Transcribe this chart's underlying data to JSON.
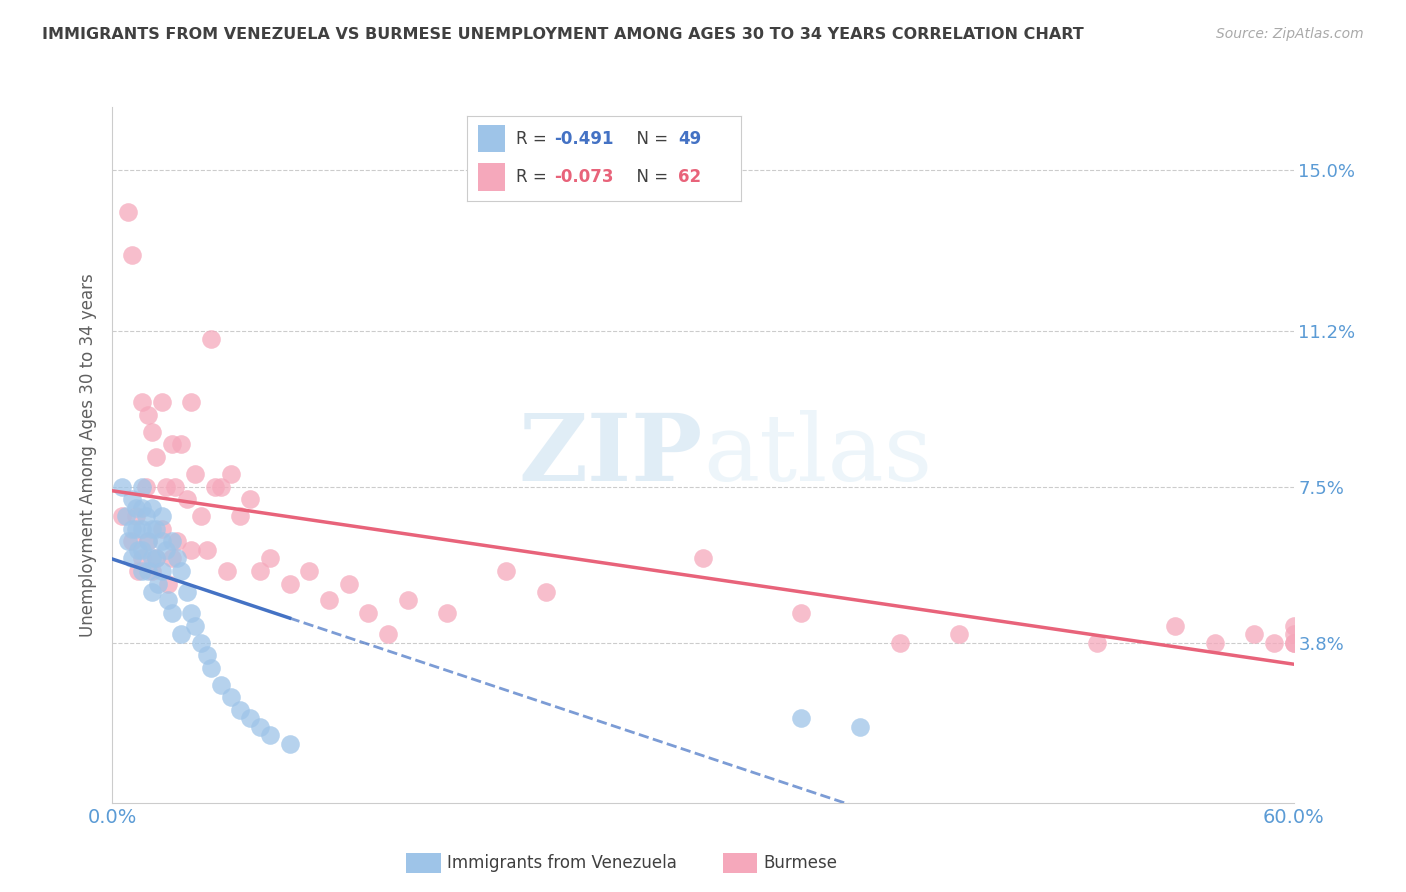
{
  "title": "IMMIGRANTS FROM VENEZUELA VS BURMESE UNEMPLOYMENT AMONG AGES 30 TO 34 YEARS CORRELATION CHART",
  "source": "Source: ZipAtlas.com",
  "ylabel": "Unemployment Among Ages 30 to 34 years",
  "ytick_labels": [
    "15.0%",
    "11.2%",
    "7.5%",
    "3.8%"
  ],
  "ytick_values": [
    0.15,
    0.112,
    0.075,
    0.038
  ],
  "xlim": [
    0.0,
    0.6
  ],
  "ylim": [
    0.0,
    0.165
  ],
  "legend1_r": "-0.491",
  "legend1_n": "49",
  "legend2_r": "-0.073",
  "legend2_n": "62",
  "color_blue": "#9ec4e8",
  "color_pink": "#f5a8bb",
  "color_blue_line": "#4472c4",
  "color_pink_line": "#e8637a",
  "color_axis_label": "#5b9bd5",
  "color_title": "#404040",
  "watermark_zip": "ZIP",
  "watermark_atlas": "atlas",
  "blue_scatter_x": [
    0.005,
    0.007,
    0.008,
    0.01,
    0.01,
    0.01,
    0.012,
    0.012,
    0.013,
    0.015,
    0.015,
    0.015,
    0.015,
    0.015,
    0.017,
    0.018,
    0.018,
    0.02,
    0.02,
    0.02,
    0.02,
    0.022,
    0.022,
    0.023,
    0.025,
    0.025,
    0.025,
    0.027,
    0.028,
    0.03,
    0.03,
    0.033,
    0.035,
    0.035,
    0.038,
    0.04,
    0.042,
    0.045,
    0.048,
    0.05,
    0.055,
    0.06,
    0.065,
    0.07,
    0.075,
    0.08,
    0.09,
    0.35,
    0.38
  ],
  "blue_scatter_y": [
    0.075,
    0.068,
    0.062,
    0.072,
    0.065,
    0.058,
    0.07,
    0.065,
    0.06,
    0.075,
    0.07,
    0.065,
    0.06,
    0.055,
    0.068,
    0.062,
    0.055,
    0.07,
    0.065,
    0.058,
    0.05,
    0.065,
    0.058,
    0.052,
    0.068,
    0.062,
    0.055,
    0.06,
    0.048,
    0.062,
    0.045,
    0.058,
    0.055,
    0.04,
    0.05,
    0.045,
    0.042,
    0.038,
    0.035,
    0.032,
    0.028,
    0.025,
    0.022,
    0.02,
    0.018,
    0.016,
    0.014,
    0.02,
    0.018
  ],
  "pink_scatter_x": [
    0.005,
    0.008,
    0.01,
    0.01,
    0.012,
    0.013,
    0.015,
    0.015,
    0.017,
    0.018,
    0.018,
    0.02,
    0.02,
    0.022,
    0.022,
    0.025,
    0.025,
    0.027,
    0.028,
    0.03,
    0.03,
    0.032,
    0.033,
    0.035,
    0.038,
    0.04,
    0.04,
    0.042,
    0.045,
    0.048,
    0.05,
    0.052,
    0.055,
    0.058,
    0.06,
    0.065,
    0.07,
    0.075,
    0.08,
    0.09,
    0.1,
    0.11,
    0.12,
    0.13,
    0.14,
    0.15,
    0.17,
    0.2,
    0.22,
    0.3,
    0.35,
    0.4,
    0.43,
    0.5,
    0.54,
    0.56,
    0.58,
    0.59,
    0.6,
    0.6,
    0.6,
    0.6
  ],
  "pink_scatter_y": [
    0.068,
    0.14,
    0.13,
    0.062,
    0.068,
    0.055,
    0.095,
    0.058,
    0.075,
    0.092,
    0.062,
    0.088,
    0.055,
    0.082,
    0.058,
    0.095,
    0.065,
    0.075,
    0.052,
    0.085,
    0.058,
    0.075,
    0.062,
    0.085,
    0.072,
    0.095,
    0.06,
    0.078,
    0.068,
    0.06,
    0.11,
    0.075,
    0.075,
    0.055,
    0.078,
    0.068,
    0.072,
    0.055,
    0.058,
    0.052,
    0.055,
    0.048,
    0.052,
    0.045,
    0.04,
    0.048,
    0.045,
    0.055,
    0.05,
    0.058,
    0.045,
    0.038,
    0.04,
    0.038,
    0.042,
    0.038,
    0.04,
    0.038,
    0.042,
    0.038,
    0.04,
    0.038
  ]
}
